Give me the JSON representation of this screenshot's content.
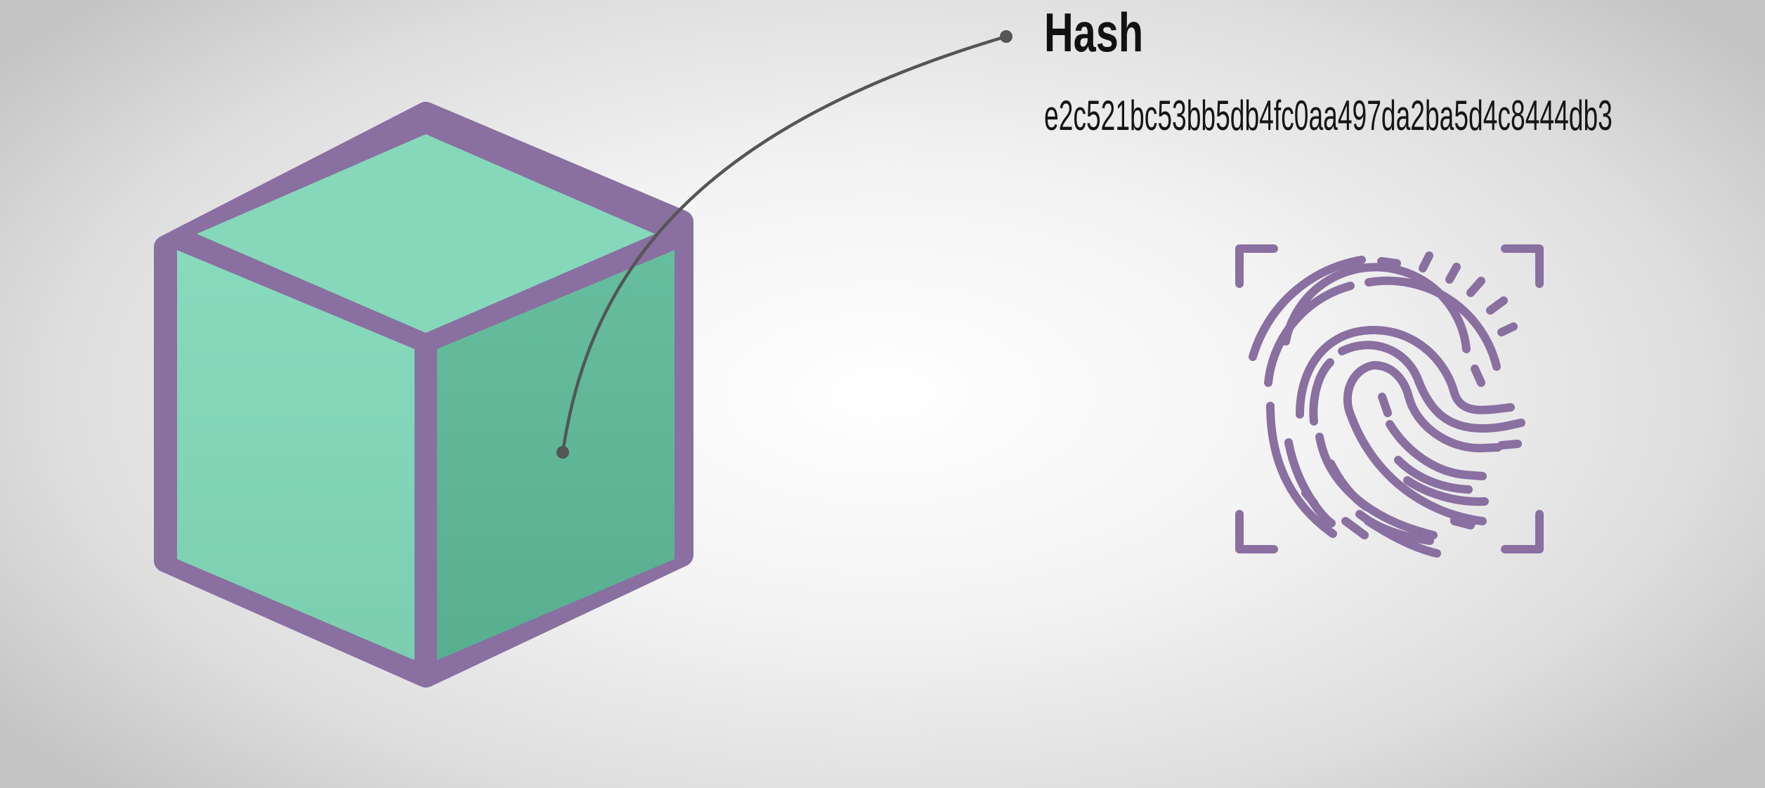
{
  "label": {
    "title": "Hash",
    "value": "e2c521bc53bb5db4fc0aa497da2ba5d4c8444db3"
  },
  "icons": {
    "block": "cube-icon",
    "identity": "fingerprint-icon"
  },
  "colors": {
    "outline": "#8a6fa1",
    "face_light": "#86d8bb",
    "face_dark": "#60b99b",
    "connector": "#555555",
    "text": "#111111"
  }
}
